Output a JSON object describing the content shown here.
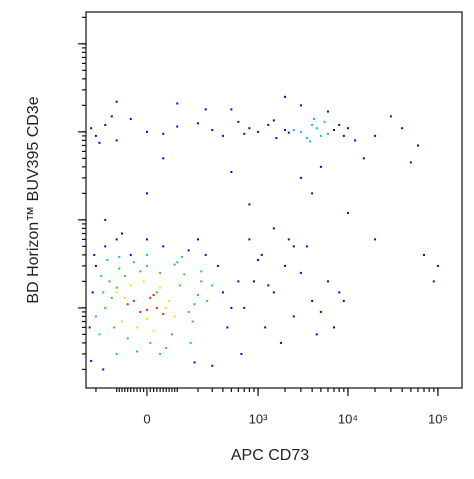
{
  "chart_data": {
    "type": "scatter",
    "x_label": "APC CD73",
    "y_label": "BD Horizon™ BUV395 CD3e",
    "xscale": "asinh",
    "yscale": "log",
    "xlim": [
      -266,
      185000
    ],
    "ylim": [
      12.3,
      230000
    ],
    "xticks": [
      0,
      {
        "value": 1000,
        "label": "10³"
      },
      {
        "value": 10000,
        "label": "10⁴"
      },
      {
        "value": 100000,
        "label": "10⁵"
      }
    ],
    "yticks": [
      100,
      1000,
      10000,
      100000
    ],
    "series": [
      {
        "color": "#0000ff",
        "x": [
          -230,
          -200,
          -150,
          -100,
          -50,
          0,
          50,
          100,
          200,
          300,
          400,
          600,
          800,
          1000,
          1300,
          1600,
          2000,
          2200,
          7000,
          8000,
          9000,
          10000,
          1500,
          700,
          -180,
          -120,
          250,
          3000,
          6000,
          12000,
          20000,
          40000,
          60000,
          30000,
          -100,
          100,
          500,
          2000,
          5000,
          15000,
          50000,
          -150,
          0,
          200,
          800,
          1500,
          3000,
          500,
          50,
          -80,
          4000,
          10000,
          20000,
          2500,
          -240,
          -220,
          -200,
          -150,
          -100,
          -50,
          0,
          50,
          150,
          250,
          350,
          400,
          450,
          600,
          -230,
          -160,
          300,
          500,
          180,
          -210,
          700,
          900,
          1200,
          1500,
          2000,
          2500,
          3000,
          4000,
          5000,
          6000,
          8000,
          1000,
          1800,
          3500,
          7000,
          2200,
          1100,
          4500,
          9000,
          650,
          800,
          1300,
          70000,
          100000,
          90000
        ],
        "y": [
          11000,
          9000,
          12000,
          8000,
          14000,
          10000,
          9500,
          11500,
          12500,
          10500,
          9000,
          13000,
          11000,
          10000,
          12000,
          8500,
          10500,
          9800,
          10500,
          12000,
          9000,
          11000,
          13500,
          9500,
          7500,
          15000,
          18000,
          20000,
          17000,
          8000,
          9000,
          11000,
          7000,
          15000,
          22000,
          21000,
          18000,
          25000,
          4000,
          5000,
          4500,
          1000,
          2000,
          600,
          1500,
          800,
          3000,
          3500,
          5000,
          700,
          2000,
          1200,
          600,
          500,
          60,
          150,
          300,
          500,
          600,
          400,
          600,
          500,
          450,
          400,
          300,
          150,
          60,
          200,
          25,
          20,
          22,
          100,
          24,
          400,
          100,
          200,
          60,
          150,
          300,
          80,
          250,
          120,
          90,
          200,
          150,
          350,
          40,
          500,
          60,
          600,
          400,
          50,
          120,
          30,
          600,
          180,
          400,
          300,
          200
        ]
      },
      {
        "color": "#00c8e6",
        "x": [
          -200,
          -170,
          -140,
          -90,
          -30,
          40,
          100,
          160,
          220,
          260,
          -180,
          0,
          120,
          300,
          -100,
          3000,
          4000,
          5000,
          3500,
          4500,
          2500,
          5500,
          6000,
          3800,
          4200
        ],
        "y": [
          80,
          230,
          350,
          380,
          32,
          30,
          330,
          40,
          260,
          120,
          50,
          400,
          380,
          180,
          30,
          10000,
          12000,
          9000,
          8500,
          11000,
          10500,
          13000,
          9500,
          7800,
          14000
        ]
      },
      {
        "color": "#2ecc2e",
        "x": [
          -150,
          -130,
          -110,
          -90,
          -60,
          -20,
          10,
          40,
          80,
          110,
          150,
          200,
          -120,
          -70,
          0,
          60,
          130,
          170,
          -40,
          90,
          30,
          -100,
          180,
          220,
          -160
        ],
        "y": [
          100,
          200,
          60,
          280,
          45,
          260,
          40,
          250,
          50,
          180,
          90,
          140,
          130,
          230,
          300,
          35,
          240,
          70,
          330,
          310,
          150,
          170,
          110,
          200,
          150
        ]
      },
      {
        "color": "#f0e800",
        "x": [
          -100,
          -80,
          -50,
          -30,
          0,
          40,
          70,
          90,
          -10,
          20,
          60,
          -70
        ],
        "y": [
          150,
          70,
          180,
          60,
          75,
          170,
          120,
          80,
          200,
          55,
          100,
          130
        ]
      },
      {
        "color": "#ff1a00",
        "x": [
          -60,
          -20,
          10,
          30,
          50,
          -40,
          0,
          20
        ],
        "y": [
          110,
          90,
          130,
          100,
          85,
          120,
          95,
          140
        ]
      }
    ]
  }
}
